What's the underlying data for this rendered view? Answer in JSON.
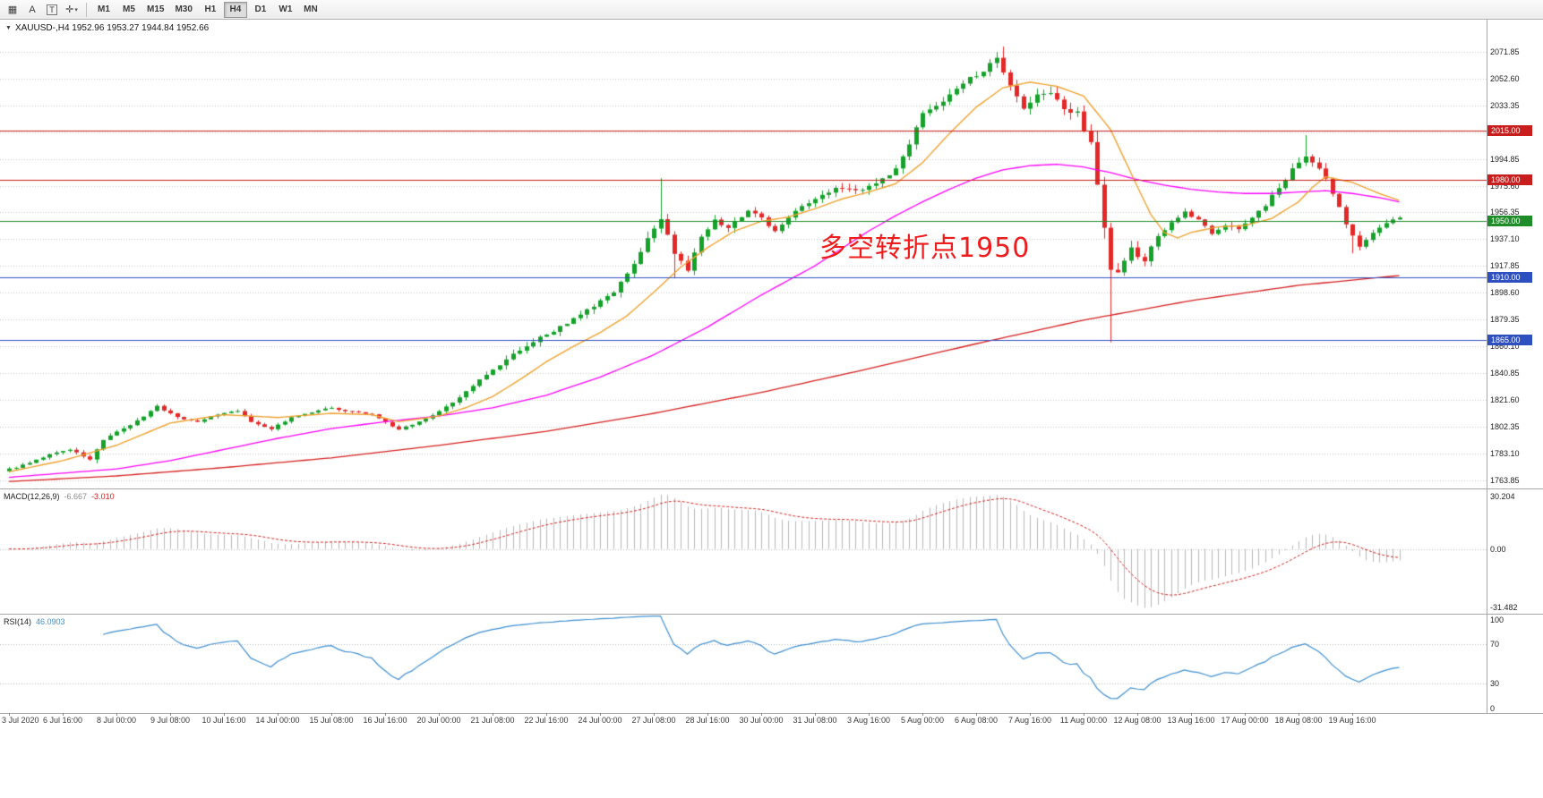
{
  "toolbar": {
    "icons": [
      {
        "name": "chart-window-icon",
        "glyph": "▦"
      },
      {
        "name": "font-a-icon",
        "glyph": "A"
      },
      {
        "name": "text-tool-icon",
        "glyph": "T"
      },
      {
        "name": "crosshair-tool-icon",
        "glyph": "✛"
      }
    ],
    "timeframes": [
      "M1",
      "M5",
      "M15",
      "M30",
      "H1",
      "H4",
      "D1",
      "W1",
      "MN"
    ],
    "active_timeframe": "H4"
  },
  "chart": {
    "collapse_glyph": "▼",
    "header": "XAUUSD-,H4  1952.96 1953.27 1944.84 1952.66",
    "annotation": "多空转折点1950"
  },
  "indicators": {
    "macd": {
      "title": "MACD(12,26,9)",
      "value": "-6.667",
      "signal": "-3.010",
      "scale": [
        "30.204",
        "0.00",
        "-31.482"
      ]
    },
    "rsi": {
      "title": "RSI(14)",
      "value": "46.0903",
      "scale": [
        "100",
        "70",
        "30",
        "0"
      ],
      "levels": [
        70,
        30
      ]
    }
  },
  "chart_data": {
    "type": "candlestick",
    "symbol": "XAUUSD-",
    "timeframe": "H4",
    "ohlc_display": {
      "open": "1952.96",
      "high": "1953.27",
      "low": "1944.84",
      "close": "1952.66"
    },
    "candles_count": 208,
    "close_anchors": [
      [
        0,
        1772
      ],
      [
        3,
        1776
      ],
      [
        6,
        1783
      ],
      [
        9,
        1786
      ],
      [
        12,
        1779
      ],
      [
        14,
        1793
      ],
      [
        17,
        1801
      ],
      [
        20,
        1810
      ],
      [
        22,
        1817
      ],
      [
        25,
        1809
      ],
      [
        28,
        1806
      ],
      [
        31,
        1811
      ],
      [
        34,
        1814
      ],
      [
        36,
        1806
      ],
      [
        39,
        1801
      ],
      [
        42,
        1809
      ],
      [
        45,
        1813
      ],
      [
        48,
        1816
      ],
      [
        51,
        1813
      ],
      [
        54,
        1811
      ],
      [
        56,
        1806
      ],
      [
        58,
        1800
      ],
      [
        60,
        1804
      ],
      [
        63,
        1810
      ],
      [
        66,
        1820
      ],
      [
        69,
        1832
      ],
      [
        72,
        1843
      ],
      [
        75,
        1855
      ],
      [
        78,
        1864
      ],
      [
        81,
        1871
      ],
      [
        84,
        1880
      ],
      [
        87,
        1889
      ],
      [
        90,
        1900
      ],
      [
        93,
        1918
      ],
      [
        95,
        1938
      ],
      [
        97,
        1950
      ],
      [
        99,
        1928
      ],
      [
        101,
        1915
      ],
      [
        103,
        1938
      ],
      [
        105,
        1951
      ],
      [
        107,
        1945
      ],
      [
        110,
        1958
      ],
      [
        112,
        1953
      ],
      [
        114,
        1942
      ],
      [
        117,
        1957
      ],
      [
        120,
        1967
      ],
      [
        123,
        1974
      ],
      [
        126,
        1972
      ],
      [
        129,
        1976
      ],
      [
        132,
        1987
      ],
      [
        134,
        2006
      ],
      [
        136,
        2027
      ],
      [
        139,
        2037
      ],
      [
        142,
        2049
      ],
      [
        145,
        2059
      ],
      [
        147,
        2067
      ],
      [
        149,
        2046
      ],
      [
        151,
        2030
      ],
      [
        153,
        2040
      ],
      [
        155,
        2043
      ],
      [
        157,
        2032
      ],
      [
        159,
        2027
      ],
      [
        161,
        2005
      ],
      [
        163,
        1948
      ],
      [
        164,
        1915
      ],
      [
        165,
        1912
      ],
      [
        167,
        1931
      ],
      [
        169,
        1921
      ],
      [
        171,
        1940
      ],
      [
        173,
        1949
      ],
      [
        175,
        1956
      ],
      [
        177,
        1952
      ],
      [
        179,
        1941
      ],
      [
        181,
        1948
      ],
      [
        183,
        1945
      ],
      [
        185,
        1953
      ],
      [
        187,
        1962
      ],
      [
        189,
        1974
      ],
      [
        191,
        1987
      ],
      [
        193,
        1997
      ],
      [
        195,
        1989
      ],
      [
        197,
        1971
      ],
      [
        199,
        1947
      ],
      [
        201,
        1933
      ],
      [
        203,
        1941
      ],
      [
        205,
        1949
      ],
      [
        207,
        1952.66
      ]
    ],
    "spikes": [
      {
        "i": 13,
        "low": 1776
      },
      {
        "i": 97,
        "high": 1981
      },
      {
        "i": 99,
        "low": 1909
      },
      {
        "i": 148,
        "high": 2075.5
      },
      {
        "i": 164,
        "low": 1863
      },
      {
        "i": 193,
        "high": 2012
      },
      {
        "i": 200,
        "low": 1927
      }
    ],
    "volatility_anchors": [
      [
        0,
        2.0
      ],
      [
        20,
        2.5
      ],
      [
        40,
        2.0
      ],
      [
        63,
        2.2
      ],
      [
        70,
        4
      ],
      [
        90,
        5
      ],
      [
        97,
        8
      ],
      [
        104,
        5
      ],
      [
        120,
        4
      ],
      [
        132,
        6
      ],
      [
        144,
        6
      ],
      [
        152,
        8
      ],
      [
        158,
        7
      ],
      [
        162,
        12
      ],
      [
        166,
        8
      ],
      [
        172,
        5
      ],
      [
        176,
        4
      ],
      [
        184,
        4
      ],
      [
        190,
        6
      ],
      [
        196,
        6
      ],
      [
        202,
        5
      ],
      [
        207,
        3
      ]
    ],
    "ma_fast_anchors": [
      [
        0,
        1770
      ],
      [
        8,
        1778
      ],
      [
        16,
        1789
      ],
      [
        24,
        1805
      ],
      [
        32,
        1811
      ],
      [
        40,
        1809
      ],
      [
        48,
        1812
      ],
      [
        54,
        1811
      ],
      [
        58,
        1806
      ],
      [
        64,
        1810
      ],
      [
        68,
        1816
      ],
      [
        72,
        1824
      ],
      [
        76,
        1836
      ],
      [
        80,
        1849
      ],
      [
        84,
        1860
      ],
      [
        88,
        1870
      ],
      [
        92,
        1882
      ],
      [
        96,
        1899
      ],
      [
        100,
        1917
      ],
      [
        104,
        1931
      ],
      [
        108,
        1943
      ],
      [
        112,
        1950
      ],
      [
        116,
        1953
      ],
      [
        120,
        1959
      ],
      [
        124,
        1966
      ],
      [
        128,
        1971
      ],
      [
        132,
        1977
      ],
      [
        136,
        1992
      ],
      [
        140,
        2013
      ],
      [
        144,
        2032
      ],
      [
        148,
        2046
      ],
      [
        152,
        2050
      ],
      [
        156,
        2047
      ],
      [
        160,
        2040
      ],
      [
        164,
        2016
      ],
      [
        168,
        1975
      ],
      [
        170,
        1955
      ],
      [
        172,
        1942
      ],
      [
        174,
        1938
      ],
      [
        176,
        1942
      ],
      [
        180,
        1946
      ],
      [
        184,
        1947
      ],
      [
        188,
        1952
      ],
      [
        192,
        1964
      ],
      [
        194,
        1974
      ],
      [
        196,
        1982
      ],
      [
        200,
        1978
      ],
      [
        204,
        1970
      ],
      [
        207,
        1965
      ]
    ],
    "ma_mid_anchors": [
      [
        0,
        1766
      ],
      [
        8,
        1769
      ],
      [
        16,
        1772
      ],
      [
        24,
        1778
      ],
      [
        32,
        1786
      ],
      [
        40,
        1794
      ],
      [
        48,
        1801
      ],
      [
        56,
        1806
      ],
      [
        64,
        1810
      ],
      [
        72,
        1816
      ],
      [
        80,
        1825
      ],
      [
        88,
        1838
      ],
      [
        96,
        1854
      ],
      [
        104,
        1874
      ],
      [
        112,
        1897
      ],
      [
        120,
        1918
      ],
      [
        128,
        1943
      ],
      [
        132,
        1954
      ],
      [
        136,
        1964
      ],
      [
        140,
        1973
      ],
      [
        144,
        1981
      ],
      [
        148,
        1987
      ],
      [
        152,
        1990
      ],
      [
        156,
        1991
      ],
      [
        160,
        1989
      ],
      [
        164,
        1985
      ],
      [
        168,
        1980
      ],
      [
        172,
        1976
      ],
      [
        176,
        1973
      ],
      [
        180,
        1971
      ],
      [
        184,
        1970
      ],
      [
        188,
        1970
      ],
      [
        192,
        1971
      ],
      [
        196,
        1972
      ],
      [
        200,
        1970
      ],
      [
        204,
        1967
      ],
      [
        207,
        1964
      ]
    ],
    "ma_slow_anchors": [
      [
        0,
        1763
      ],
      [
        16,
        1767
      ],
      [
        32,
        1773
      ],
      [
        48,
        1780
      ],
      [
        64,
        1789
      ],
      [
        80,
        1799
      ],
      [
        96,
        1812
      ],
      [
        112,
        1827
      ],
      [
        128,
        1844
      ],
      [
        144,
        1862
      ],
      [
        160,
        1879
      ],
      [
        176,
        1893
      ],
      [
        192,
        1904
      ],
      [
        207,
        1911
      ]
    ],
    "y_axis": {
      "top_price": 2094.9,
      "bottom_price": 1758.0,
      "labels": [
        "2071.85",
        "2052.60",
        "2033.35",
        "2014.10",
        "1994.85",
        "1975.60",
        "1956.35",
        "1937.10",
        "1917.85",
        "1898.60",
        "1879.35",
        "1860.10",
        "1840.85",
        "1821.60",
        "1802.35",
        "1783.10",
        "1763.85"
      ]
    },
    "x_axis": {
      "labels": [
        "3 Jul 2020",
        "6 Jul 16:00",
        "8 Jul 00:00",
        "9 Jul 08:00",
        "10 Jul 16:00",
        "14 Jul 00:00",
        "15 Jul 08:00",
        "16 Jul 16:00",
        "20 Jul 00:00",
        "21 Jul 08:00",
        "22 Jul 16:00",
        "24 Jul 00:00",
        "27 Jul 08:00",
        "28 Jul 16:00",
        "30 Jul 00:00",
        "31 Jul 08:00",
        "3 Aug 16:00",
        "5 Aug 00:00",
        "6 Aug 08:00",
        "7 Aug 16:00",
        "11 Aug 00:00",
        "12 Aug 08:00",
        "13 Aug 16:00",
        "17 Aug 00:00",
        "18 Aug 08:00",
        "19 Aug 16:00"
      ],
      "candles_per_label": 8
    },
    "horizontal_levels": [
      {
        "price": 2015,
        "label": "2015.00",
        "color": "#c81e1e"
      },
      {
        "price": 1980,
        "label": "1980.00",
        "color": "#c81e1e"
      },
      {
        "price": 1950,
        "label": "1950.00",
        "color": "#1e8c28"
      },
      {
        "price": 1910,
        "label": "1910.00",
        "color": "#2e4fc0"
      },
      {
        "price": 1865,
        "label": "1865.00",
        "color": "#2e4fc0"
      }
    ],
    "colors": {
      "candle_up": "#16a12b",
      "candle_down": "#e32828",
      "ma_fast": "#efa231",
      "ma_mid": "#ff00ff",
      "ma_slow": "#d62020",
      "grid": "#c9c9c9",
      "macd_hist": "#b9b9b9",
      "macd_signal": "#d02020",
      "rsi_line": "#3e8ed0",
      "annotation": "#ee1c1c"
    }
  }
}
